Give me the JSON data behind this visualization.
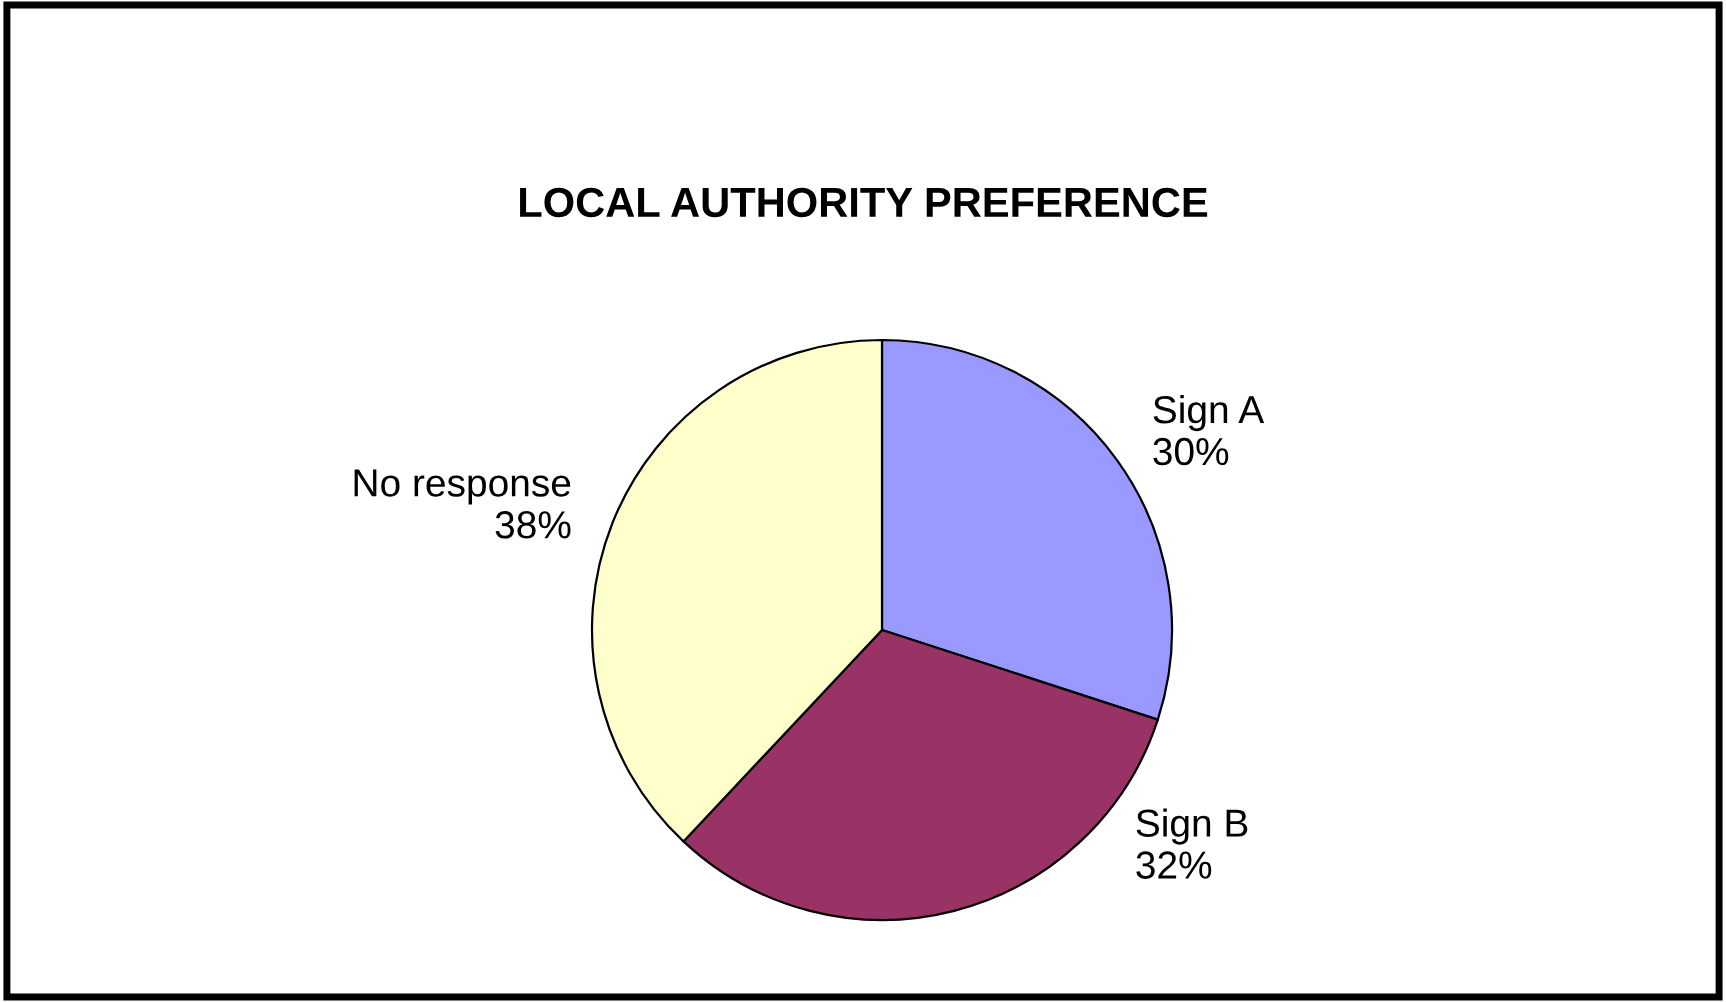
{
  "chart_data": {
    "type": "pie",
    "title": "LOCAL AUTHORITY PREFERENCE",
    "categories": [
      "Sign A",
      "Sign B",
      "No response"
    ],
    "values": [
      30,
      32,
      38
    ],
    "value_labels": [
      "30%",
      "32%",
      "38%"
    ],
    "colors": [
      "#9999ff",
      "#993366",
      "#ffffcc"
    ],
    "legend": false
  }
}
